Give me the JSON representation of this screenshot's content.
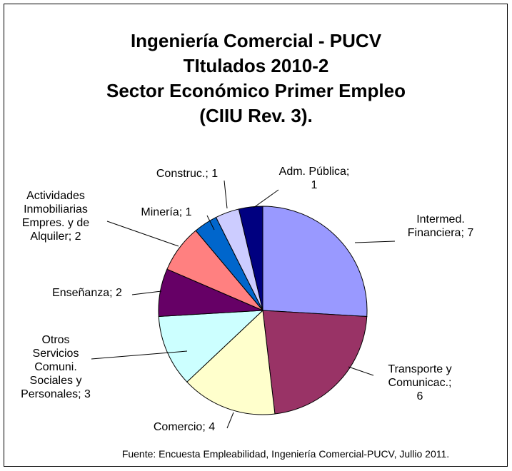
{
  "chart_data": {
    "type": "pie",
    "title": [
      "Ingeniería Comercial - PUCV",
      "TItulados 2010-2",
      "Sector Económico Primer Empleo",
      "(CIIU Rev. 3)."
    ],
    "categories": [
      "Intermed. Financiera",
      "Transporte y Comunicac.",
      "Comercio",
      "Otros Servicios Comuni. Sociales y Personales",
      "Enseñanza",
      "Actividades Inmobiliarias Empres. y de Alquiler",
      "Minería",
      "Construc.",
      "Adm. Pública"
    ],
    "values": [
      7,
      6,
      4,
      3,
      2,
      2,
      1,
      1,
      1
    ],
    "colors": [
      "#9999ff",
      "#993366",
      "#ffffcc",
      "#ccffff",
      "#660066",
      "#ff8080",
      "#0066cc",
      "#ccccff",
      "#000080"
    ],
    "label_separator": ";",
    "source": "Fuente: Encuesta Empleabilidad, Ingeniería Comercial-PUCV, Jullio 2011."
  }
}
